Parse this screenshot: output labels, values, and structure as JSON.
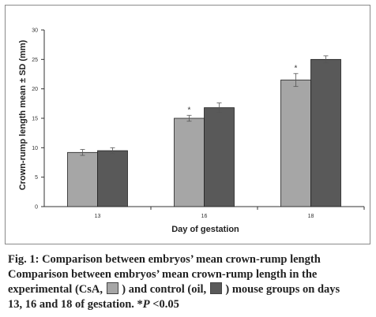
{
  "chart_data": {
    "type": "bar",
    "xlabel": "Day of gestation",
    "ylabel": "Crown-rump length mean ± SD (mm)",
    "categories": [
      "13",
      "16",
      "18"
    ],
    "ylim": [
      0,
      30
    ],
    "yticks": [
      "0",
      "5",
      "10",
      "15",
      "20",
      "25",
      "30"
    ],
    "grid": false,
    "series": [
      {
        "values": [
          9.2,
          15.0,
          21.5
        ],
        "errors": [
          0.5,
          0.5,
          1.1
        ],
        "color": "#a6a6a6"
      },
      {
        "values": [
          9.5,
          16.8,
          25.0
        ],
        "errors": [
          0.5,
          0.8,
          0.6
        ],
        "color": "#595959"
      }
    ],
    "significance": [
      "",
      "*",
      "*"
    ]
  },
  "caption": {
    "title": "Fig. 1: Comparison between embryos’ mean crown-rump length",
    "line2": "Comparison between embryos’ mean crown-rump length in the",
    "line3_a": "experimental (CsA,",
    "line3_b": ") and control (oil,",
    "line3_c": ") mouse groups on days",
    "line4_a": "13, 16 and 18 of gestation. *",
    "line4_p": "P",
    "line4_b": " <0.05"
  }
}
